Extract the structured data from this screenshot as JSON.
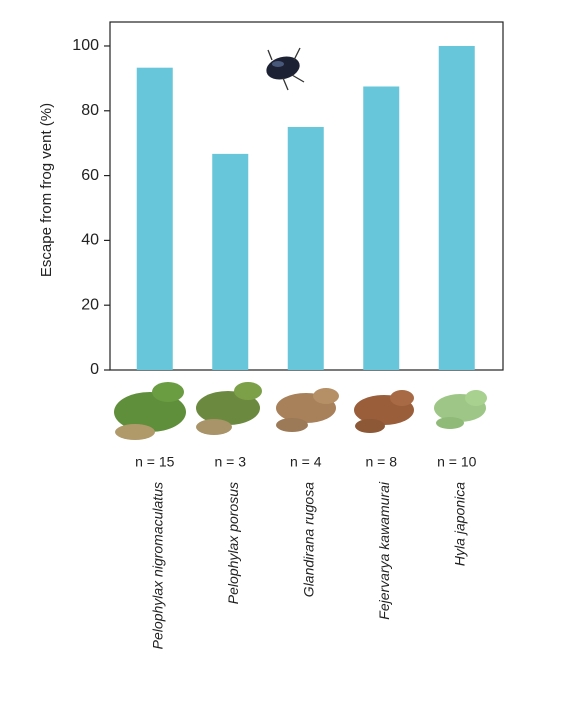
{
  "chart_data": {
    "type": "bar",
    "ylabel": "Escape from frog vent (%)",
    "categories": [
      "Pelophylax nigromaculatus",
      "Pelophylax porosus",
      "Glandirana rugosa",
      "Fejervarya kawamurai",
      "Hyla japonica"
    ],
    "sample_labels": [
      "n = 15",
      "n = 3",
      "n = 4",
      "n = 8",
      "n = 10"
    ],
    "values": [
      93.3,
      66.7,
      75,
      87.5,
      100
    ],
    "color": "#67c6d9",
    "ylim": [
      0,
      107.4
    ],
    "yticks": [
      0,
      20,
      40,
      60,
      80,
      100
    ]
  }
}
